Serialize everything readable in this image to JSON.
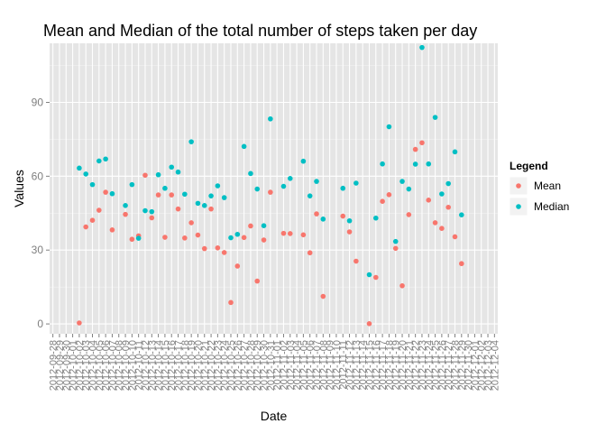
{
  "chart_data": {
    "type": "scatter",
    "title": "Mean and Median of the total number of steps taken per day",
    "xlabel": "Date",
    "ylabel": "Values",
    "ylim": [
      -4,
      114
    ],
    "yticks": [
      0,
      30,
      60,
      90
    ],
    "grid": true,
    "legend": {
      "title": "Legend",
      "position": "right"
    },
    "x_tick_labels": [
      "2012-09-28",
      "2012-09-29",
      "2012-09-30",
      "2012-10-01",
      "2012-10-02",
      "2012-10-03",
      "2012-10-04",
      "2012-10-05",
      "2012-10-06",
      "2012-10-07",
      "2012-10-08",
      "2012-10-09",
      "2012-10-10",
      "2012-10-11",
      "2012-10-12",
      "2012-10-13",
      "2012-10-14",
      "2012-10-15",
      "2012-10-16",
      "2012-10-17",
      "2012-10-18",
      "2012-10-19",
      "2012-10-20",
      "2012-10-21",
      "2012-10-22",
      "2012-10-23",
      "2012-10-24",
      "2012-10-25",
      "2012-10-26",
      "2012-10-27",
      "2012-10-28",
      "2012-10-29",
      "2012-10-30",
      "2012-10-31",
      "2012-11-01",
      "2012-11-02",
      "2012-11-03",
      "2012-11-04",
      "2012-11-05",
      "2012-11-06",
      "2012-11-07",
      "2012-11-08",
      "2012-11-09",
      "2012-11-10",
      "2012-11-11",
      "2012-11-12",
      "2012-11-13",
      "2012-11-14",
      "2012-11-15",
      "2012-11-16",
      "2012-11-17",
      "2012-11-18",
      "2012-11-19",
      "2012-11-20",
      "2012-11-21",
      "2012-11-22",
      "2012-11-23",
      "2012-11-24",
      "2012-11-25",
      "2012-11-26",
      "2012-11-27",
      "2012-11-28",
      "2012-11-29",
      "2012-11-30",
      "2012-12-01",
      "2012-12-02",
      "2012-12-03",
      "2012-12-04"
    ],
    "series": [
      {
        "name": "Mean",
        "color": "#F8766D",
        "points": [
          [
            "2012-10-02",
            0.4
          ],
          [
            "2012-10-03",
            39.4
          ],
          [
            "2012-10-04",
            42.1
          ],
          [
            "2012-10-05",
            46.2
          ],
          [
            "2012-10-06",
            53.5
          ],
          [
            "2012-10-07",
            38.2
          ],
          [
            "2012-10-09",
            44.5
          ],
          [
            "2012-10-10",
            34.4
          ],
          [
            "2012-10-11",
            35.8
          ],
          [
            "2012-10-12",
            60.4
          ],
          [
            "2012-10-13",
            43.1
          ],
          [
            "2012-10-14",
            52.4
          ],
          [
            "2012-10-15",
            35.2
          ],
          [
            "2012-10-16",
            52.4
          ],
          [
            "2012-10-17",
            46.7
          ],
          [
            "2012-10-18",
            34.9
          ],
          [
            "2012-10-19",
            41.1
          ],
          [
            "2012-10-20",
            36.1
          ],
          [
            "2012-10-21",
            30.6
          ],
          [
            "2012-10-22",
            46.7
          ],
          [
            "2012-10-23",
            30.9
          ],
          [
            "2012-10-24",
            29.0
          ],
          [
            "2012-10-25",
            8.7
          ],
          [
            "2012-10-26",
            23.5
          ],
          [
            "2012-10-27",
            35.1
          ],
          [
            "2012-10-28",
            39.8
          ],
          [
            "2012-10-29",
            17.4
          ],
          [
            "2012-10-30",
            34.1
          ],
          [
            "2012-10-31",
            53.5
          ],
          [
            "2012-11-02",
            36.8
          ],
          [
            "2012-11-03",
            36.7
          ],
          [
            "2012-11-05",
            36.2
          ],
          [
            "2012-11-06",
            28.9
          ],
          [
            "2012-11-07",
            44.7
          ],
          [
            "2012-11-08",
            11.2
          ],
          [
            "2012-11-11",
            43.8
          ],
          [
            "2012-11-12",
            37.4
          ],
          [
            "2012-11-13",
            25.5
          ],
          [
            "2012-11-15",
            0.1
          ],
          [
            "2012-11-16",
            18.9
          ],
          [
            "2012-11-17",
            49.8
          ],
          [
            "2012-11-18",
            52.5
          ],
          [
            "2012-11-19",
            30.7
          ],
          [
            "2012-11-20",
            15.5
          ],
          [
            "2012-11-21",
            44.4
          ],
          [
            "2012-11-22",
            70.9
          ],
          [
            "2012-11-23",
            73.6
          ],
          [
            "2012-11-24",
            50.3
          ],
          [
            "2012-11-25",
            41.1
          ],
          [
            "2012-11-26",
            38.8
          ],
          [
            "2012-11-27",
            47.4
          ],
          [
            "2012-11-28",
            35.4
          ],
          [
            "2012-11-29",
            24.5
          ]
        ]
      },
      {
        "name": "Median",
        "color": "#00BFC4",
        "points": [
          [
            "2012-10-02",
            63.3
          ],
          [
            "2012-10-03",
            60.9
          ],
          [
            "2012-10-04",
            56.6
          ],
          [
            "2012-10-05",
            66.2
          ],
          [
            "2012-10-06",
            67.0
          ],
          [
            "2012-10-07",
            52.9
          ],
          [
            "2012-10-09",
            48.1
          ],
          [
            "2012-10-10",
            56.6
          ],
          [
            "2012-10-11",
            34.8
          ],
          [
            "2012-10-12",
            46.0
          ],
          [
            "2012-10-13",
            45.6
          ],
          [
            "2012-10-14",
            60.6
          ],
          [
            "2012-10-15",
            55.1
          ],
          [
            "2012-10-16",
            63.7
          ],
          [
            "2012-10-17",
            61.7
          ],
          [
            "2012-10-18",
            52.7
          ],
          [
            "2012-10-19",
            74.0
          ],
          [
            "2012-10-20",
            49.0
          ],
          [
            "2012-10-21",
            48.1
          ],
          [
            "2012-10-22",
            52.0
          ],
          [
            "2012-10-23",
            56.1
          ],
          [
            "2012-10-24",
            51.3
          ],
          [
            "2012-10-25",
            35.0
          ],
          [
            "2012-10-26",
            36.4
          ],
          [
            "2012-10-27",
            72.1
          ],
          [
            "2012-10-28",
            61.1
          ],
          [
            "2012-10-29",
            54.8
          ],
          [
            "2012-10-30",
            39.9
          ],
          [
            "2012-10-31",
            83.3
          ],
          [
            "2012-11-02",
            55.9
          ],
          [
            "2012-11-03",
            59.1
          ],
          [
            "2012-11-05",
            66.1
          ],
          [
            "2012-11-06",
            52.0
          ],
          [
            "2012-11-07",
            57.9
          ],
          [
            "2012-11-08",
            42.6
          ],
          [
            "2012-11-11",
            55.1
          ],
          [
            "2012-11-12",
            41.9
          ],
          [
            "2012-11-13",
            57.2
          ],
          [
            "2012-11-15",
            20.0
          ],
          [
            "2012-11-16",
            43.0
          ],
          [
            "2012-11-17",
            65.0
          ],
          [
            "2012-11-18",
            80.1
          ],
          [
            "2012-11-19",
            33.5
          ],
          [
            "2012-11-20",
            57.9
          ],
          [
            "2012-11-21",
            54.8
          ],
          [
            "2012-11-22",
            64.9
          ],
          [
            "2012-11-23",
            112.3
          ],
          [
            "2012-11-24",
            65.0
          ],
          [
            "2012-11-25",
            83.9
          ],
          [
            "2012-11-26",
            52.8
          ],
          [
            "2012-11-27",
            57.0
          ],
          [
            "2012-11-28",
            69.9
          ],
          [
            "2012-11-29",
            44.3
          ]
        ]
      }
    ]
  }
}
